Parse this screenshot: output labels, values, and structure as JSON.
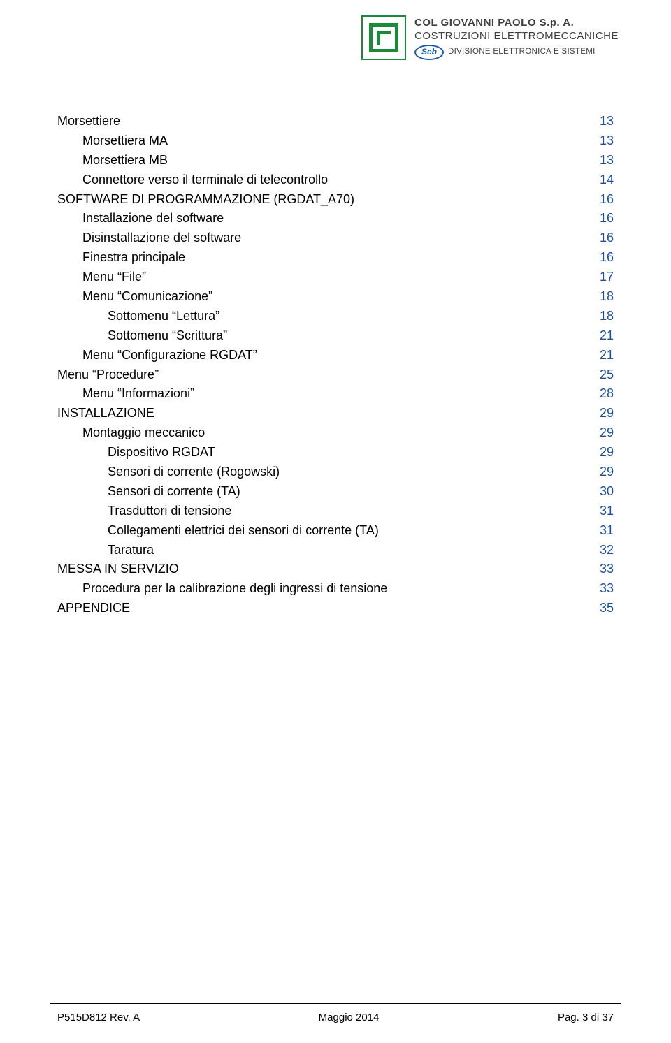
{
  "header": {
    "company_line1": "COL GIOVANNI PAOLO  S.p. A.",
    "company_line2": "COSTRUZIONI ELETTROMECCANICHE",
    "seb_label": "Seb",
    "seb_division": "DIVISIONE ELETTRONICA E SISTEMI"
  },
  "toc": {
    "items": [
      {
        "label": "Morsettiere",
        "page": "13",
        "indent": 0
      },
      {
        "label": "Morsettiera MA",
        "page": "13",
        "indent": 1
      },
      {
        "label": "Morsettiera MB",
        "page": "13",
        "indent": 1
      },
      {
        "label": "Connettore verso il terminale di telecontrollo",
        "page": "14",
        "indent": 1
      },
      {
        "label": "SOFTWARE DI PROGRAMMAZIONE (RGDAT_A70)",
        "page": "16",
        "indent": 0
      },
      {
        "label": "Installazione del software",
        "page": "16",
        "indent": 1
      },
      {
        "label": "Disinstallazione del software",
        "page": "16",
        "indent": 1
      },
      {
        "label": "Finestra principale",
        "page": "16",
        "indent": 1
      },
      {
        "label": "Menu “File”",
        "page": "17",
        "indent": 1
      },
      {
        "label": "Menu “Comunicazione”",
        "page": "18",
        "indent": 1
      },
      {
        "label": "Sottomenu “Lettura”",
        "page": "18",
        "indent": 2
      },
      {
        "label": "Sottomenu “Scrittura”",
        "page": "21",
        "indent": 2
      },
      {
        "label": "Menu “Configurazione RGDAT”",
        "page": "21",
        "indent": 1
      },
      {
        "label": "Menu “Procedure”",
        "page": "25",
        "indent": 0
      },
      {
        "label": "Menu “Informazioni”",
        "page": "28",
        "indent": 1
      },
      {
        "label": "INSTALLAZIONE",
        "page": "29",
        "indent": 0
      },
      {
        "label": "Montaggio meccanico",
        "page": "29",
        "indent": 1
      },
      {
        "label": "Dispositivo RGDAT",
        "page": "29",
        "indent": 2
      },
      {
        "label": "Sensori di corrente (Rogowski)",
        "page": "29",
        "indent": 2
      },
      {
        "label": "Sensori di corrente (TA)",
        "page": "30",
        "indent": 2
      },
      {
        "label": "Trasduttori di tensione",
        "page": "31",
        "indent": 2
      },
      {
        "label": "Collegamenti elettrici dei sensori di corrente (TA)",
        "page": "31",
        "indent": 2
      },
      {
        "label": "Taratura",
        "page": "32",
        "indent": 2
      },
      {
        "label": "MESSA IN SERVIZIO",
        "page": "33",
        "indent": 0
      },
      {
        "label": "Procedura per la calibrazione degli ingressi di tensione",
        "page": "33",
        "indent": 1
      },
      {
        "label": "APPENDICE",
        "page": "35",
        "indent": 0
      }
    ]
  },
  "footer": {
    "left": "P515D812 Rev. A",
    "center": "Maggio 2014",
    "right": "Pag. 3 di 37"
  },
  "colors": {
    "text": "#000000",
    "page_number": "#1a4fa0",
    "logo_green": "#1a8a3a",
    "logo_blue": "#1a5aa8",
    "header_grey": "#404040",
    "background": "#ffffff"
  }
}
